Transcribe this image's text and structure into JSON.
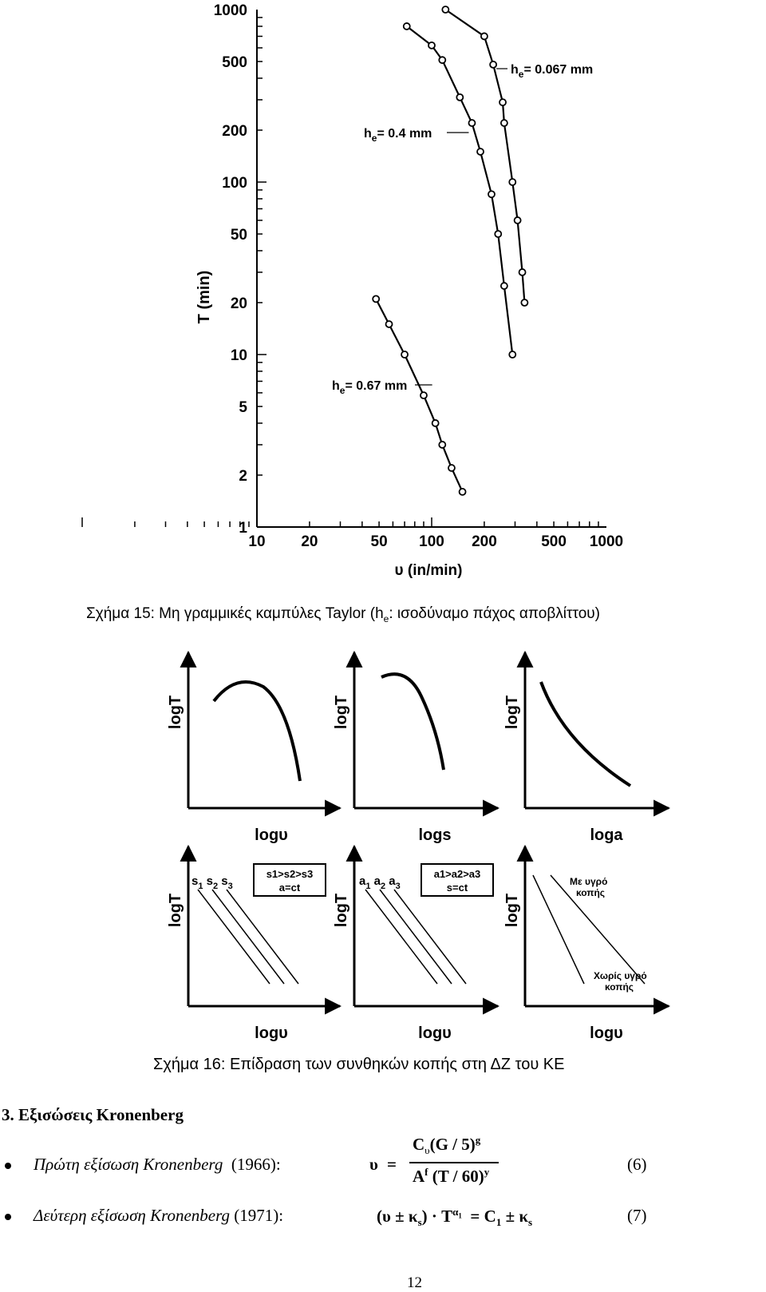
{
  "figure15": {
    "caption_text": "Σχήμα 15: Μη γραμμικές καμπύλες Taylor (h",
    "caption_sub": "e",
    "caption_tail": ": ισοδύναμο πάχος αποβλίττου)"
  },
  "chart_data": [
    {
      "type": "line",
      "ylabel": "T (min)",
      "xlabel": "υ (in/min)",
      "x_scale": "log",
      "y_scale": "log",
      "xlim": [
        10,
        1000
      ],
      "ylim": [
        1,
        1000
      ],
      "x_ticks": [
        "10",
        "20",
        "50",
        "100",
        "200",
        "500",
        "1000"
      ],
      "y_ticks": [
        "1",
        "2",
        "5",
        "10",
        "20",
        "50",
        "100",
        "200",
        "500",
        "1000"
      ],
      "series": [
        {
          "name_prefix": "h",
          "name_sub": "e",
          "name_suffix": "= 0.067 mm",
          "points": [
            [
              120,
              1000
            ],
            [
              200,
              700
            ],
            [
              225,
              480
            ],
            [
              255,
              290
            ],
            [
              260,
              220
            ],
            [
              290,
              100
            ],
            [
              310,
              60
            ],
            [
              330,
              30
            ],
            [
              340,
              20
            ]
          ]
        },
        {
          "name_prefix": "h",
          "name_sub": "e",
          "name_suffix": "= 0.4 mm",
          "points": [
            [
              72,
              800
            ],
            [
              100,
              620
            ],
            [
              115,
              510
            ],
            [
              145,
              310
            ],
            [
              170,
              220
            ],
            [
              190,
              150
            ],
            [
              220,
              85
            ],
            [
              240,
              50
            ],
            [
              260,
              25
            ],
            [
              290,
              10
            ]
          ]
        },
        {
          "name_prefix": "h",
          "name_sub": "e",
          "name_suffix": "= 0.67 mm",
          "points": [
            [
              48,
              21
            ],
            [
              57,
              15
            ],
            [
              70,
              10
            ],
            [
              90,
              5.8
            ],
            [
              105,
              4
            ],
            [
              115,
              3
            ],
            [
              130,
              2.2
            ],
            [
              150,
              1.6
            ]
          ]
        }
      ]
    }
  ],
  "figure16": {
    "panels": [
      {
        "ylabel": "logT",
        "xlabel": "logυ"
      },
      {
        "ylabel": "logT",
        "xlabel": "logs"
      },
      {
        "ylabel": "logT",
        "xlabel": "loga"
      },
      {
        "ylabel": "logT",
        "xlabel": "logυ",
        "line_labels": [
          "s",
          "1",
          "s",
          "2",
          "s",
          "3"
        ],
        "box_line1": "s1>s2>s3",
        "box_line2": "a=ct"
      },
      {
        "ylabel": "logT",
        "xlabel": "logυ",
        "line_labels": [
          "a",
          "1",
          "a",
          "2",
          "a",
          "3"
        ],
        "box_line1": "a1>a2>a3",
        "box_line2": "s=ct"
      },
      {
        "ylabel": "logT",
        "xlabel": "logυ",
        "note_top_1": "Με υγρό",
        "note_top_2": "κοπής",
        "note_bottom_1": "Χωρίς υγρό",
        "note_bottom_2": "κοπής"
      }
    ],
    "caption": "Σχήμα 16: Επίδραση των συνθηκών κοπής στη ΔΖ του ΚΕ"
  },
  "section_title": "3. Εξισώσεις Kronenberg",
  "equations": [
    {
      "label": "Πρώτη εξίσωση Kronenberg",
      "year": "(1966):",
      "number": "(6)"
    },
    {
      "label": "Δεύτερη εξίσωση Kronenberg",
      "year": "(1971):",
      "number": "(7)"
    }
  ],
  "page_number": "12"
}
